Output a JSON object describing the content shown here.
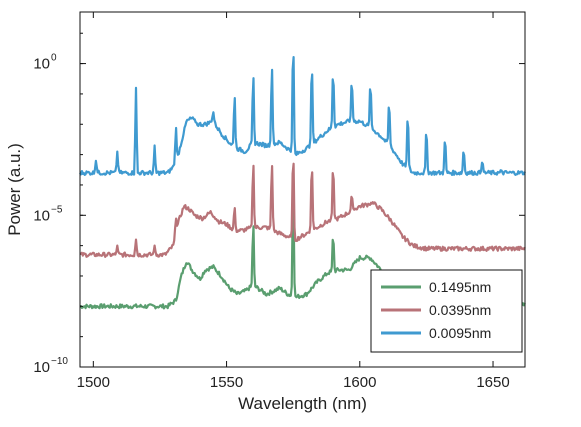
{
  "chart_data": {
    "type": "line",
    "xlabel": "Wavelength (nm)",
    "ylabel": "Power (a.u.)",
    "xlim": [
      1495,
      1662
    ],
    "ylim_log10": [
      -10,
      1.7
    ],
    "yscale": "log",
    "x_ticks": [
      1500,
      1550,
      1600,
      1650
    ],
    "y_ticks": [
      {
        "base": "10",
        "exp": "0",
        "value": 1
      },
      {
        "base": "10",
        "exp": "−5",
        "value": 1e-05
      },
      {
        "base": "10",
        "exp": "−10",
        "value": 1e-10
      }
    ],
    "grid": false,
    "legend_position": "bottom-right",
    "series": [
      {
        "name": "0.1495nm",
        "color": "#5a9e6f",
        "baseline_log10": -8.0,
        "points": [
          [
            1495,
            -8.0
          ],
          [
            1528,
            -8.0
          ],
          [
            1531,
            -7.8
          ],
          [
            1533,
            -7.0
          ],
          [
            1535,
            -6.5
          ],
          [
            1537,
            -6.8
          ],
          [
            1540,
            -7.1
          ],
          [
            1542,
            -6.8
          ],
          [
            1545,
            -6.7
          ],
          [
            1548,
            -7.0
          ],
          [
            1551,
            -7.4
          ],
          [
            1554,
            -7.6
          ],
          [
            1557,
            -7.5
          ],
          [
            1560,
            -7.3
          ],
          [
            1565,
            -7.6
          ],
          [
            1570,
            -7.4
          ],
          [
            1573,
            -7.6
          ],
          [
            1576,
            -7.7
          ],
          [
            1580,
            -7.6
          ],
          [
            1584,
            -7.2
          ],
          [
            1588,
            -6.9
          ],
          [
            1592,
            -6.8
          ],
          [
            1596,
            -6.8
          ],
          [
            1600,
            -6.4
          ],
          [
            1604,
            -6.4
          ],
          [
            1608,
            -6.8
          ],
          [
            1612,
            -7.2
          ],
          [
            1616,
            -7.5
          ],
          [
            1620,
            -7.6
          ],
          [
            1624,
            -7.7
          ],
          [
            1628,
            -7.8
          ],
          [
            1632,
            -7.8
          ],
          [
            1645,
            -7.9
          ],
          [
            1662,
            -7.9
          ]
        ],
        "peaks": [
          [
            1560,
            -5.2
          ],
          [
            1575,
            -4.2
          ],
          [
            1590,
            -5.6
          ]
        ]
      },
      {
        "name": "0.0395nm",
        "color": "#b87378",
        "baseline_log10": -6.3,
        "points": [
          [
            1495,
            -6.3
          ],
          [
            1527,
            -6.3
          ],
          [
            1530,
            -6.0
          ],
          [
            1532,
            -5.2
          ],
          [
            1534,
            -4.7
          ],
          [
            1536,
            -4.8
          ],
          [
            1538,
            -5.0
          ],
          [
            1541,
            -5.1
          ],
          [
            1544,
            -4.9
          ],
          [
            1547,
            -5.2
          ],
          [
            1550,
            -5.3
          ],
          [
            1553,
            -5.5
          ],
          [
            1556,
            -5.5
          ],
          [
            1560,
            -5.4
          ],
          [
            1565,
            -5.4
          ],
          [
            1570,
            -5.6
          ],
          [
            1573,
            -5.7
          ],
          [
            1576,
            -5.8
          ],
          [
            1580,
            -5.6
          ],
          [
            1584,
            -5.4
          ],
          [
            1588,
            -5.2
          ],
          [
            1592,
            -5.1
          ],
          [
            1596,
            -4.9
          ],
          [
            1600,
            -4.7
          ],
          [
            1605,
            -4.6
          ],
          [
            1608,
            -4.8
          ],
          [
            1612,
            -5.2
          ],
          [
            1616,
            -5.7
          ],
          [
            1620,
            -6.0
          ],
          [
            1625,
            -6.1
          ],
          [
            1640,
            -6.1
          ],
          [
            1662,
            -6.1
          ]
        ],
        "peaks": [
          [
            1509,
            -6.0
          ],
          [
            1516,
            -5.8
          ],
          [
            1523,
            -6.0
          ],
          [
            1531,
            -5.1
          ],
          [
            1538,
            -5.1
          ],
          [
            1545,
            -5.1
          ],
          [
            1553,
            -4.7
          ],
          [
            1560,
            -3.2
          ],
          [
            1567,
            -3.2
          ],
          [
            1575,
            -2.8
          ],
          [
            1582,
            -3.2
          ],
          [
            1590,
            -3.3
          ],
          [
            1597,
            -4.3
          ],
          [
            1604,
            -4.7
          ],
          [
            1611,
            -5.5
          ]
        ]
      },
      {
        "name": "0.0095nm",
        "color": "#3f9ad0",
        "baseline_log10": -3.6,
        "points": [
          [
            1495,
            -3.6
          ],
          [
            1528,
            -3.6
          ],
          [
            1531,
            -3.3
          ],
          [
            1533,
            -2.6
          ],
          [
            1535,
            -1.9
          ],
          [
            1537,
            -1.8
          ],
          [
            1539,
            -2.0
          ],
          [
            1542,
            -2.0
          ],
          [
            1545,
            -1.9
          ],
          [
            1548,
            -2.3
          ],
          [
            1551,
            -2.6
          ],
          [
            1554,
            -2.8
          ],
          [
            1557,
            -2.9
          ],
          [
            1560,
            -2.6
          ],
          [
            1565,
            -2.7
          ],
          [
            1570,
            -2.6
          ],
          [
            1573,
            -2.8
          ],
          [
            1576,
            -3.0
          ],
          [
            1580,
            -2.8
          ],
          [
            1584,
            -2.5
          ],
          [
            1588,
            -2.2
          ],
          [
            1592,
            -2.0
          ],
          [
            1596,
            -1.9
          ],
          [
            1600,
            -1.9
          ],
          [
            1604,
            -2.1
          ],
          [
            1608,
            -2.4
          ],
          [
            1612,
            -2.8
          ],
          [
            1616,
            -3.3
          ],
          [
            1620,
            -3.6
          ],
          [
            1625,
            -3.6
          ],
          [
            1640,
            -3.6
          ],
          [
            1662,
            -3.6
          ]
        ],
        "peaks": [
          [
            1501,
            -3.2
          ],
          [
            1509,
            -2.9
          ],
          [
            1516,
            -0.8
          ],
          [
            1523,
            -2.7
          ],
          [
            1531,
            -2.1
          ],
          [
            1538,
            -1.9
          ],
          [
            1545,
            -1.6
          ],
          [
            1553,
            -1.0
          ],
          [
            1560,
            -0.3
          ],
          [
            1567,
            0.0
          ],
          [
            1575,
            0.85
          ],
          [
            1582,
            0.1
          ],
          [
            1590,
            -0.2
          ],
          [
            1597,
            -0.5
          ],
          [
            1604,
            -0.6
          ],
          [
            1611,
            -1.2
          ],
          [
            1618,
            -1.6
          ],
          [
            1625,
            -2.1
          ],
          [
            1632,
            -2.4
          ],
          [
            1639,
            -2.8
          ],
          [
            1646,
            -3.2
          ],
          [
            1653,
            -3.5
          ]
        ]
      }
    ]
  }
}
